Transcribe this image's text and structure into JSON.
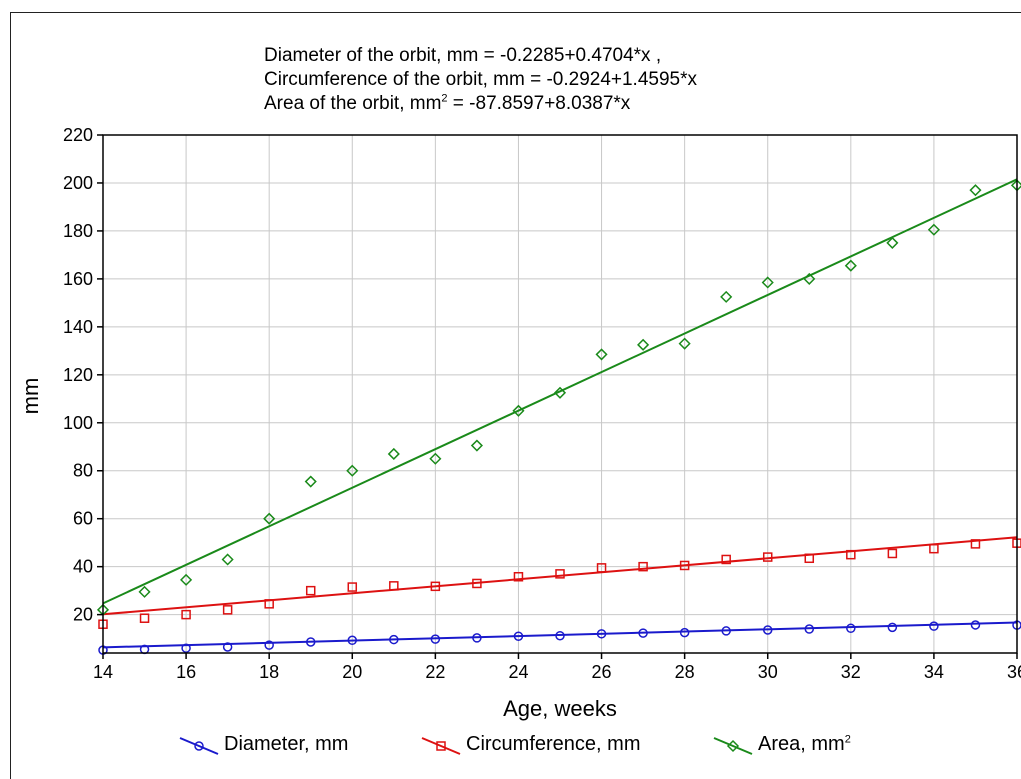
{
  "equations": {
    "diameter": "Diameter of the orbit, mm = -0.2285+0.4704*x ,",
    "circumference": "Circumference of the orbit, mm = -0.2924+1.4595*x",
    "area_prefix": "Area of the orbit, mm",
    "area_sup": "2",
    "area_suffix": " = -87.8597+8.0387*x"
  },
  "chart_data": {
    "type": "scatter",
    "xlabel": "Age, weeks",
    "ylabel": "mm",
    "xlim": [
      14,
      36
    ],
    "ylim": [
      4,
      220
    ],
    "xticks": [
      14,
      16,
      18,
      20,
      22,
      24,
      26,
      28,
      30,
      32,
      34,
      36
    ],
    "yticks": [
      20,
      40,
      60,
      80,
      100,
      120,
      140,
      160,
      180,
      200,
      220
    ],
    "grid": true,
    "legend_position": "bottom",
    "x": [
      14,
      15,
      16,
      17,
      18,
      19,
      20,
      21,
      22,
      23,
      24,
      25,
      26,
      27,
      28,
      29,
      30,
      31,
      32,
      33,
      34,
      35,
      36
    ],
    "series": [
      {
        "name": "Diameter, mm",
        "marker": "circle",
        "color": "#1a1acc",
        "fit": {
          "intercept": -0.2285,
          "slope": 0.4704
        },
        "values": [
          5.2,
          5.5,
          6.0,
          6.5,
          7.3,
          8.6,
          9.3,
          9.6,
          9.8,
          10.3,
          11.0,
          11.2,
          12.0,
          12.3,
          12.5,
          13.2,
          13.6,
          14.0,
          14.3,
          14.7,
          15.2,
          15.7,
          15.6
        ]
      },
      {
        "name": "Circumference, mm",
        "marker": "square",
        "color": "#dd1111",
        "fit": {
          "intercept": -0.2924,
          "slope": 1.4595
        },
        "values": [
          16,
          18.5,
          20,
          22,
          24.5,
          30,
          31.5,
          32,
          31.8,
          33,
          35.8,
          37,
          39.5,
          40,
          40.5,
          43,
          44,
          43.5,
          45,
          45.5,
          47.5,
          49.5,
          49.8
        ]
      },
      {
        "name": "Area, mm",
        "name_sup": "2",
        "marker": "diamond",
        "color": "#1a8a1a",
        "fit": {
          "intercept": -87.8597,
          "slope": 8.0387
        },
        "values": [
          22,
          29.5,
          34.5,
          43,
          60,
          75.5,
          80,
          87,
          85,
          90.5,
          105,
          112.5,
          128.5,
          132.5,
          133,
          152.5,
          158.5,
          160,
          165.5,
          175,
          180.5,
          197,
          199
        ]
      }
    ]
  }
}
